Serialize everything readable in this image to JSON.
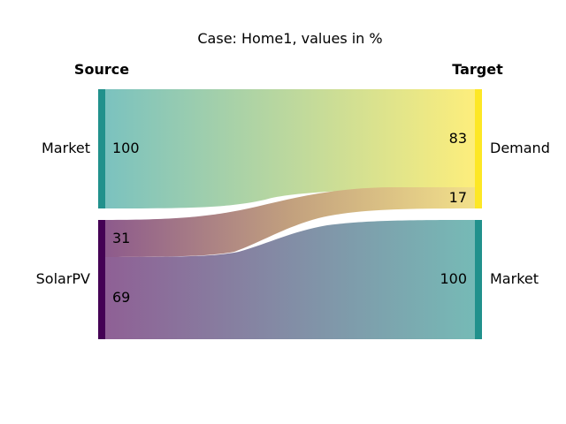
{
  "title": "Case: Home1, values in %",
  "headers": {
    "source": "Source",
    "target": "Target"
  },
  "colors": {
    "market": "#21918c",
    "solarpv": "#440154",
    "demand": "#fde725",
    "mid": "#c6a57a"
  },
  "chart_data": {
    "type": "sankey",
    "title": "Case: Home1, values in %",
    "sources": [
      {
        "label": "Market",
        "flows": [
          {
            "value": "100",
            "label_shown": "100"
          }
        ]
      },
      {
        "label": "SolarPV",
        "flows": [
          {
            "value": "31",
            "label_shown": "31"
          },
          {
            "value": "69",
            "label_shown": "69"
          }
        ]
      }
    ],
    "targets": [
      {
        "label": "Demand",
        "inflows": [
          {
            "value": "83"
          },
          {
            "value": "17"
          }
        ]
      },
      {
        "label": "Market",
        "inflows": [
          {
            "value": "100"
          }
        ]
      }
    ],
    "links": [
      {
        "from": "Market",
        "to": "Demand",
        "percent_of_source": 100,
        "percent_of_target": 83
      },
      {
        "from": "SolarPV",
        "to": "Demand",
        "percent_of_source": 31,
        "percent_of_target": 17
      },
      {
        "from": "SolarPV",
        "to": "Market",
        "percent_of_source": 69,
        "percent_of_target": 100
      }
    ]
  }
}
